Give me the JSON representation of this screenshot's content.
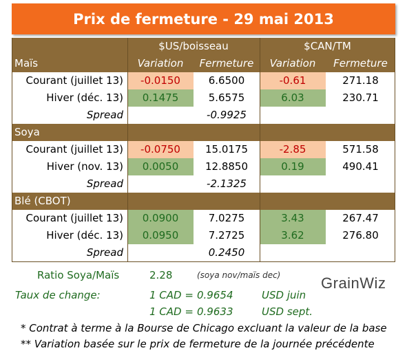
{
  "title": "Prix de fermeture - 29 mai 2013",
  "headers": {
    "usd": "$US/boisseau",
    "cad": "$CAN/TM",
    "variation": "Variation",
    "fermeture": "Fermeture"
  },
  "sections": [
    {
      "name": "Maïs",
      "rows": [
        {
          "label": "Courant (juillet 13)",
          "usd_var": "-0.0150",
          "usd_close": "6.6500",
          "cad_var": "-0.61",
          "cad_close": "271.18"
        },
        {
          "label": "Hiver (déc. 13)",
          "usd_var": "0.1475",
          "usd_close": "5.6575",
          "cad_var": "6.03",
          "cad_close": "230.71"
        }
      ],
      "spread_label": "Spread",
      "spread": "-0.9925"
    },
    {
      "name": "Soya",
      "rows": [
        {
          "label": "Courant (juillet 13)",
          "usd_var": "-0.0750",
          "usd_close": "15.0175",
          "cad_var": "-2.85",
          "cad_close": "571.58"
        },
        {
          "label": "Hiver (nov. 13)",
          "usd_var": "0.0050",
          "usd_close": "12.8850",
          "cad_var": "0.19",
          "cad_close": "490.41"
        }
      ],
      "spread_label": "Spread",
      "spread": "-2.1325"
    },
    {
      "name": "Blé (CBOT)",
      "rows": [
        {
          "label": "Courant (juillet 13)",
          "usd_var": "0.0900",
          "usd_close": "7.0275",
          "cad_var": "3.43",
          "cad_close": "267.47"
        },
        {
          "label": "Hiver (déc. 13)",
          "usd_var": "0.0950",
          "usd_close": "7.2725",
          "cad_var": "3.62",
          "cad_close": "276.80"
        }
      ],
      "spread_label": "Spread",
      "spread": "0.2450"
    }
  ],
  "ratio": {
    "label": "Ratio Soya/Maïs",
    "value": "2.28",
    "note": "(soya nov/maïs dec)"
  },
  "exchange": {
    "label": "Taux de change:",
    "line1": {
      "left": "1 CAD =",
      "value": "0.9654",
      "unit": "USD juin"
    },
    "line2": {
      "left": "1 CAD =",
      "value": "0.9633",
      "unit": "USD sept."
    }
  },
  "footnotes": {
    "one": "* Contrat à terme à la Bourse de Chicago excluant la valeur de la base",
    "two": "** Variation basée sur le prix de fermeture de la journée précédente"
  },
  "logo": "GrainWiz",
  "colors": {
    "banner": "#f26b1d",
    "section": "#8b6a38",
    "negative_bg": "#f9c9a4",
    "negative_text": "#c00000",
    "positive_bg": "#9fbc84",
    "positive_text": "#1f6b1f"
  }
}
